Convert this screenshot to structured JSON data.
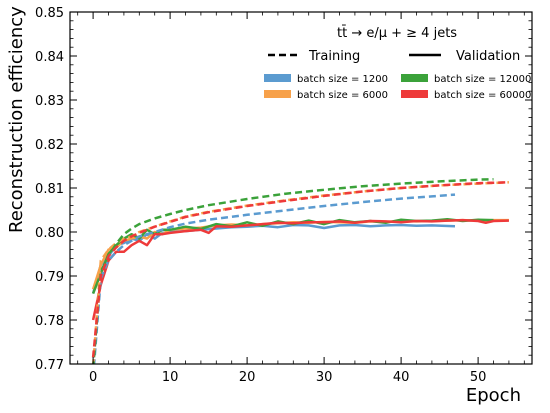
{
  "chart_data": {
    "type": "line",
    "title": "",
    "xlabel": "Epoch",
    "ylabel": "Reconstruction efficiency",
    "xlim": [
      -3,
      57
    ],
    "ylim": [
      0.77,
      0.85
    ],
    "xticks": [
      0,
      10,
      20,
      30,
      40,
      50
    ],
    "yticks": [
      0.77,
      0.78,
      0.79,
      0.8,
      0.81,
      0.82,
      0.83,
      0.84,
      0.85
    ],
    "ytick_labels": [
      "0.77",
      "0.78",
      "0.79",
      "0.80",
      "0.81",
      "0.82",
      "0.83",
      "0.84",
      "0.85"
    ],
    "grid": false,
    "legend": {
      "placement": "top-right",
      "title": "tt̄ → e/μ + ≥ 4 jets",
      "line_styles": [
        {
          "label": "Training",
          "dash": "dashed"
        },
        {
          "label": "Validation",
          "dash": "solid"
        }
      ],
      "entries": [
        {
          "label": "batch size = 1200",
          "color": "#5b9bd0"
        },
        {
          "label": "batch size = 12000",
          "color": "#3ba23a"
        },
        {
          "label": "batch size = 6000",
          "color": "#f7a14a"
        },
        {
          "label": "batch size = 60000",
          "color": "#ee3a3a"
        }
      ]
    },
    "series": [
      {
        "name": "batch size = 1200",
        "color": "#5b9bd0",
        "training": {
          "x": [
            0,
            1,
            2,
            3,
            4,
            5,
            6,
            8,
            10,
            12,
            15,
            20,
            25,
            30,
            35,
            40,
            44,
            47
          ],
          "y": [
            0.767,
            0.7895,
            0.7935,
            0.7955,
            0.797,
            0.798,
            0.799,
            0.8,
            0.8011,
            0.8019,
            0.8028,
            0.8039,
            0.8049,
            0.8059,
            0.8068,
            0.8076,
            0.8081,
            0.8085
          ]
        },
        "validation": {
          "x": [
            0,
            1,
            2,
            3,
            4,
            5,
            6,
            7,
            8,
            9,
            10,
            12,
            14,
            16,
            18,
            20,
            22,
            24,
            26,
            28,
            30,
            32,
            34,
            36,
            38,
            40,
            42,
            44,
            47
          ],
          "y": [
            0.786,
            0.7925,
            0.7945,
            0.797,
            0.7975,
            0.7985,
            0.798,
            0.7995,
            0.7985,
            0.7998,
            0.8,
            0.8002,
            0.8005,
            0.8008,
            0.8011,
            0.8012,
            0.8014,
            0.8011,
            0.8016,
            0.8015,
            0.8009,
            0.8015,
            0.8016,
            0.8013,
            0.8015,
            0.8016,
            0.8014,
            0.8015,
            0.8013
          ]
        }
      },
      {
        "name": "batch size = 6000",
        "color": "#f7a14a",
        "training": {
          "x": [
            0,
            1,
            2,
            3,
            4,
            5,
            6,
            8,
            10,
            12,
            15,
            20,
            25,
            30,
            35,
            40,
            45,
            50,
            54
          ],
          "y": [
            0.7695,
            0.7935,
            0.796,
            0.7975,
            0.7985,
            0.799,
            0.8,
            0.8012,
            0.8024,
            0.8035,
            0.8046,
            0.806,
            0.8072,
            0.8083,
            0.8092,
            0.81,
            0.8106,
            0.811,
            0.8113
          ]
        },
        "validation": {
          "x": [
            0,
            1,
            2,
            3,
            4,
            5,
            6,
            7,
            8,
            9,
            10,
            12,
            14,
            16,
            18,
            20,
            22,
            24,
            26,
            28,
            30,
            32,
            34,
            36,
            38,
            40,
            42,
            44,
            46,
            48,
            50,
            52,
            54
          ],
          "y": [
            0.787,
            0.7925,
            0.796,
            0.7965,
            0.798,
            0.7985,
            0.799,
            0.7985,
            0.8,
            0.7995,
            0.8005,
            0.8008,
            0.801,
            0.8015,
            0.8017,
            0.8015,
            0.8018,
            0.802,
            0.8022,
            0.8021,
            0.8023,
            0.8022,
            0.8021,
            0.8024,
            0.8023,
            0.8025,
            0.8024,
            0.8025,
            0.8026,
            0.8027,
            0.8026,
            0.8027,
            0.8027
          ]
        }
      },
      {
        "name": "batch size = 12000",
        "color": "#3ba23a",
        "training": {
          "x": [
            0,
            1,
            2,
            3,
            4,
            5,
            6,
            8,
            10,
            12,
            15,
            20,
            25,
            30,
            35,
            40,
            45,
            50,
            52
          ],
          "y": [
            0.769,
            0.791,
            0.7945,
            0.7973,
            0.7995,
            0.8008,
            0.8018,
            0.8031,
            0.8041,
            0.805,
            0.8061,
            0.8075,
            0.8087,
            0.8096,
            0.8104,
            0.811,
            0.8115,
            0.8119,
            0.812
          ]
        },
        "validation": {
          "x": [
            0,
            1,
            2,
            3,
            4,
            5,
            6,
            7,
            8,
            9,
            10,
            12,
            14,
            16,
            18,
            20,
            22,
            24,
            26,
            28,
            30,
            32,
            34,
            36,
            38,
            40,
            42,
            44,
            46,
            48,
            50,
            52
          ],
          "y": [
            0.786,
            0.7905,
            0.795,
            0.797,
            0.7985,
            0.7995,
            0.7985,
            0.8005,
            0.7995,
            0.8005,
            0.8005,
            0.8012,
            0.8007,
            0.8018,
            0.8013,
            0.8022,
            0.8014,
            0.8024,
            0.8018,
            0.8026,
            0.8018,
            0.8027,
            0.8022,
            0.8025,
            0.8021,
            0.8028,
            0.8025,
            0.8026,
            0.8029,
            0.8025,
            0.8028,
            0.8027
          ]
        }
      },
      {
        "name": "batch size = 60000",
        "color": "#ee3a3a",
        "training": {
          "x": [
            0,
            1,
            2,
            3,
            4,
            5,
            6,
            8,
            10,
            12,
            15,
            20,
            25,
            30,
            35,
            40,
            45,
            50,
            54
          ],
          "y": [
            0.7715,
            0.79,
            0.7945,
            0.7965,
            0.798,
            0.799,
            0.7998,
            0.8012,
            0.8023,
            0.8034,
            0.8045,
            0.8059,
            0.8071,
            0.8082,
            0.8092,
            0.81,
            0.8106,
            0.8111,
            0.8113
          ]
        },
        "validation": {
          "x": [
            0,
            1,
            2,
            3,
            4,
            5,
            6,
            7,
            8,
            9,
            10,
            12,
            14,
            15,
            16,
            18,
            20,
            22,
            24,
            26,
            28,
            30,
            32,
            34,
            36,
            38,
            40,
            42,
            44,
            46,
            48,
            50,
            51,
            52,
            54
          ],
          "y": [
            0.78,
            0.788,
            0.7935,
            0.7955,
            0.7955,
            0.797,
            0.798,
            0.797,
            0.7995,
            0.7995,
            0.7998,
            0.8002,
            0.8005,
            0.7998,
            0.8013,
            0.8012,
            0.8015,
            0.8018,
            0.8021,
            0.802,
            0.8022,
            0.8022,
            0.8024,
            0.8021,
            0.8025,
            0.8024,
            0.8022,
            0.8025,
            0.8024,
            0.8026,
            0.8027,
            0.8025,
            0.8021,
            0.8025,
            0.8026
          ]
        }
      }
    ]
  }
}
